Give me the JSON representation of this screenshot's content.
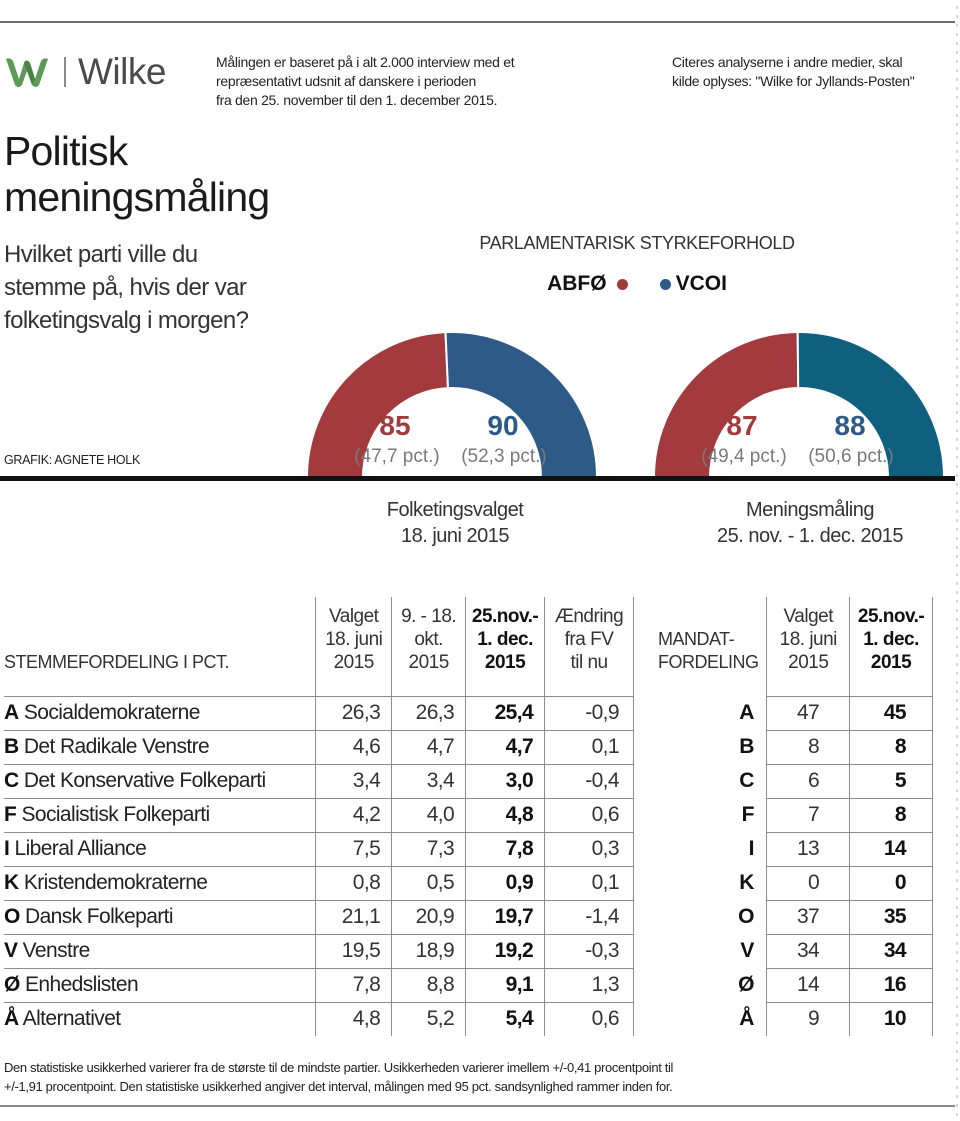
{
  "header": {
    "logo_text": "Wilke",
    "intro": [
      "Målingen er baseret på i alt 2.000 interview med et",
      "repræsentativt udsnit af danskere i perioden",
      "fra den 25. november til den 1. december 2015."
    ],
    "citation": [
      "Citeres analyserne i andre medier, skal",
      "kilde oplyses: \"Wilke for Jyllands-Posten\""
    ]
  },
  "title": [
    "Politisk",
    "meningsmåling"
  ],
  "question": [
    "Hvilket parti ville du",
    "stemme på, hvis der var",
    "folketingsvalg i morgen?"
  ],
  "credit": "GRAFIK: AGNETE HOLK",
  "colors": {
    "red": "#a23a3e",
    "blue": "#2e5a87",
    "teal": "#0f5f7e"
  },
  "chart_data": [
    {
      "type": "pie",
      "subtype": "half-donut",
      "title": "PARLAMENTARISK STYRKEFORHOLD",
      "caption": [
        "Folketingsvalget",
        "18. juni 2015"
      ],
      "legend": [
        "ABFØ",
        "VCOI"
      ],
      "values": [
        85,
        90
      ],
      "labels": [
        "(47,7 pct.)",
        "(52,3 pct.)"
      ],
      "seat_labels": [
        "85",
        "90"
      ]
    },
    {
      "type": "pie",
      "subtype": "half-donut",
      "title": "PARLAMENTARISK STYRKEFORHOLD",
      "caption": [
        "Meningsmåling",
        "25. nov. - 1. dec. 2015"
      ],
      "legend": [
        "ABFØ",
        "VCOI"
      ],
      "values": [
        87,
        88
      ],
      "labels": [
        "(49,4 pct.)",
        "(50,6 pct.)"
      ],
      "seat_labels": [
        "87",
        "88"
      ]
    },
    {
      "type": "table",
      "title": "STEMMEFORDELING I PCT.",
      "columns": [
        [
          "Valget",
          "18. juni",
          "2015"
        ],
        [
          "9. - 18.",
          "okt.",
          "2015"
        ],
        [
          "25.nov.-",
          "1. dec.",
          "2015"
        ],
        [
          "Ændring",
          "fra FV",
          "til nu"
        ]
      ],
      "rows": [
        {
          "code": "A",
          "name": "Socialdemokraterne",
          "values": [
            "26,3",
            "26,3",
            "25,4",
            "-0,9"
          ]
        },
        {
          "code": "B",
          "name": "Det Radikale Venstre",
          "values": [
            "4,6",
            "4,7",
            "4,7",
            "0,1"
          ]
        },
        {
          "code": "C",
          "name": "Det Konservative Folkeparti",
          "values": [
            "3,4",
            "3,4",
            "3,0",
            "-0,4"
          ]
        },
        {
          "code": "F",
          "name": "Socialistisk Folkeparti",
          "values": [
            "4,2",
            "4,0",
            "4,8",
            "0,6"
          ]
        },
        {
          "code": "I",
          "name": " Liberal Alliance",
          "values": [
            "7,5",
            "7,3",
            "7,8",
            "0,3"
          ]
        },
        {
          "code": "K",
          "name": "Kristendemokraterne",
          "values": [
            "0,8",
            "0,5",
            "0,9",
            "0,1"
          ]
        },
        {
          "code": "O",
          "name": "Dansk Folkeparti",
          "values": [
            "21,1",
            "20,9",
            "19,7",
            "-1,4"
          ]
        },
        {
          "code": "V",
          "name": "Venstre",
          "values": [
            "19,5",
            "18,9",
            "19,2",
            "-0,3"
          ]
        },
        {
          "code": "Ø",
          "name": "Enhedslisten",
          "values": [
            "7,8",
            "8,8",
            "9,1",
            "1,3"
          ]
        },
        {
          "code": "Å",
          "name": "Alternativet",
          "values": [
            "4,8",
            "5,2",
            "5,4",
            "0,6"
          ]
        }
      ]
    },
    {
      "type": "table",
      "title": [
        "MANDAT-",
        "FORDELING"
      ],
      "columns": [
        [
          "Valget",
          "18. juni",
          "2015"
        ],
        [
          "25.nov.-",
          "1. dec.",
          "2015"
        ]
      ],
      "rows": [
        {
          "code": "A",
          "values": [
            "47",
            "45"
          ]
        },
        {
          "code": "B",
          "values": [
            "8",
            "8"
          ]
        },
        {
          "code": "C",
          "values": [
            "6",
            "5"
          ]
        },
        {
          "code": "F",
          "values": [
            "7",
            "8"
          ]
        },
        {
          "code": "I",
          "values": [
            "13",
            "14"
          ]
        },
        {
          "code": "K",
          "values": [
            "0",
            "0"
          ]
        },
        {
          "code": "O",
          "values": [
            "37",
            "35"
          ]
        },
        {
          "code": "V",
          "values": [
            "34",
            "34"
          ]
        },
        {
          "code": "Ø",
          "values": [
            "14",
            "16"
          ]
        },
        {
          "code": "Å",
          "values": [
            "9",
            "10"
          ]
        }
      ]
    }
  ],
  "footnote": [
    "Den statistiske usikkerhed varierer fra de største til de mindste partier. Usikkerheden varierer imellem +/-0,41 procentpoint til",
    "+/-1,91 procentpoint. Den statistiske usikkerhed angiver det interval, målingen med 95 pct. sandsynlighed rammer inden for."
  ]
}
